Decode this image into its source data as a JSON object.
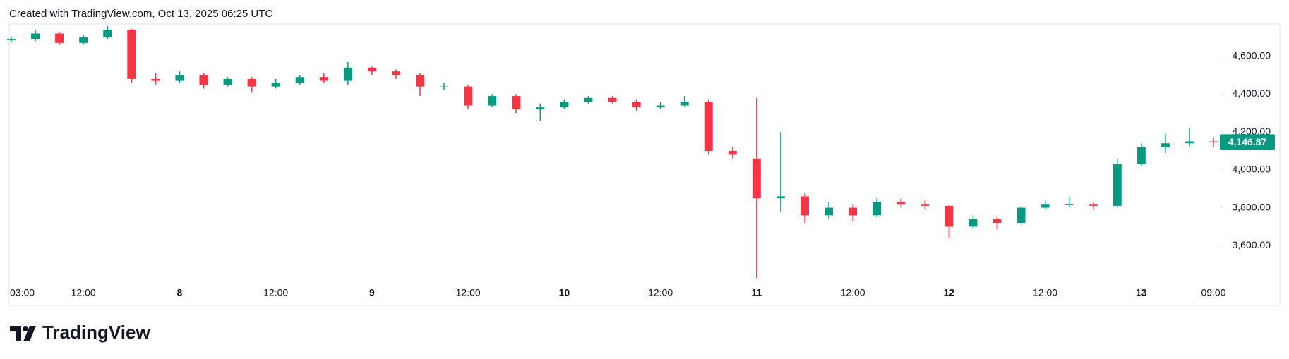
{
  "chart_data": {
    "type": "candlestick",
    "title": "Created with TradingView.com, Oct 13, 2025 06:25 UTC",
    "brand": "TradingView",
    "categories": [
      "03:00",
      null,
      null,
      "12:00",
      null,
      null,
      null,
      "8",
      null,
      null,
      null,
      "12:00",
      null,
      null,
      null,
      "9",
      null,
      null,
      null,
      "12:00",
      null,
      null,
      null,
      "10",
      null,
      null,
      null,
      "12:00",
      null,
      null,
      null,
      "11",
      null,
      null,
      null,
      "12:00",
      null,
      null,
      null,
      "12",
      null,
      null,
      null,
      "12:00",
      null,
      null,
      null,
      "13",
      null,
      null,
      "09:00"
    ],
    "open": [
      4685,
      4690,
      4720,
      4670,
      4700,
      4740,
      4480,
      4470,
      4500,
      4450,
      4480,
      4440,
      4460,
      4490,
      4470,
      4540,
      4520,
      4500,
      4440,
      4440,
      4340,
      4390,
      4320,
      4330,
      4360,
      4380,
      4360,
      4330,
      4340,
      4360,
      4100,
      4060,
      3850,
      3860,
      3760,
      3800,
      3760,
      3830,
      3820,
      3810,
      3700,
      3740,
      3720,
      3800,
      3820,
      3820,
      3810,
      4030,
      4120,
      4140,
      4150
    ],
    "high": [
      4700,
      4740,
      4725,
      4710,
      4760,
      4745,
      4510,
      4520,
      4510,
      4490,
      4490,
      4480,
      4500,
      4510,
      4570,
      4545,
      4530,
      4510,
      4460,
      4450,
      4400,
      4400,
      4350,
      4370,
      4390,
      4390,
      4370,
      4360,
      4390,
      4370,
      4120,
      4380,
      4200,
      3880,
      3830,
      3820,
      3850,
      3850,
      3840,
      3815,
      3760,
      3750,
      3810,
      3840,
      3860,
      3830,
      4060,
      4140,
      4190,
      4220,
      4170
    ],
    "low": [
      4675,
      4680,
      4660,
      4660,
      4690,
      4460,
      4450,
      4460,
      4430,
      4440,
      4410,
      4430,
      4450,
      4460,
      4450,
      4500,
      4480,
      4390,
      4420,
      4320,
      4330,
      4300,
      4260,
      4320,
      4350,
      4350,
      4310,
      4320,
      4330,
      4080,
      4060,
      3430,
      3780,
      3720,
      3740,
      3730,
      3750,
      3800,
      3790,
      3640,
      3690,
      3690,
      3710,
      3790,
      3800,
      3790,
      3800,
      4020,
      4090,
      4120,
      4120
    ],
    "close": [
      4690,
      4720,
      4670,
      4700,
      4740,
      4480,
      4470,
      4500,
      4450,
      4480,
      4440,
      4460,
      4490,
      4470,
      4540,
      4520,
      4500,
      4440,
      4440,
      4340,
      4390,
      4320,
      4330,
      4360,
      4380,
      4360,
      4330,
      4340,
      4360,
      4100,
      4080,
      3850,
      3860,
      3760,
      3800,
      3760,
      3830,
      3820,
      3810,
      3700,
      3740,
      3720,
      3800,
      3820,
      3820,
      3810,
      4030,
      4120,
      4140,
      4150,
      4146.87
    ],
    "last_price_label": "4,146.87",
    "up_color": "#089981",
    "down_color": "#f23645",
    "ylim": [
      3400,
      4770
    ],
    "yticks": [
      {
        "value": 3600,
        "label": "3,600.00"
      },
      {
        "value": 3800,
        "label": "3,800.00"
      },
      {
        "value": 4000,
        "label": "4,000.00"
      },
      {
        "value": 4200,
        "label": "4,200.00"
      },
      {
        "value": 4400,
        "label": "4,400.00"
      },
      {
        "value": 4600,
        "label": "4,600.00"
      }
    ],
    "grid": false
  }
}
